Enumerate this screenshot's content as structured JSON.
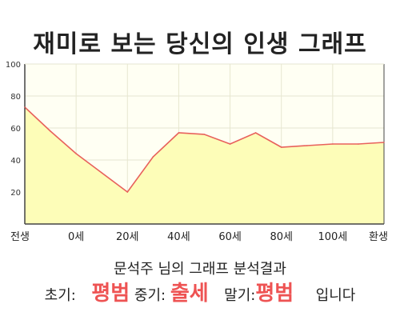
{
  "title": "재미로 보는 당신의 인생 그래프",
  "chart_data": {
    "type": "area",
    "x_ticks": [
      "전생",
      "0세",
      "20세",
      "40세",
      "60세",
      "80세",
      "100세",
      "환생"
    ],
    "y_ticks": [
      "20",
      "40",
      "60",
      "80",
      "100"
    ],
    "ylim": [
      0,
      100
    ],
    "grid": true,
    "values": [
      73,
      58,
      44,
      32,
      20,
      42,
      57,
      56,
      50,
      57,
      48,
      49,
      50,
      50,
      51
    ],
    "colors": {
      "line": "#e8615c",
      "fill": "#fdfdb8",
      "plot_bg": "#fffff3",
      "grid": "#e6e6d0",
      "axis": "#444444"
    }
  },
  "result": {
    "line1": "문석주 님의 그래프 분석결과",
    "early_label": "초기:",
    "early_value": "평범",
    "mid_label": "중기:",
    "mid_value": "출세",
    "late_label": "말기:",
    "late_value": "평범",
    "ending": "입니다"
  }
}
